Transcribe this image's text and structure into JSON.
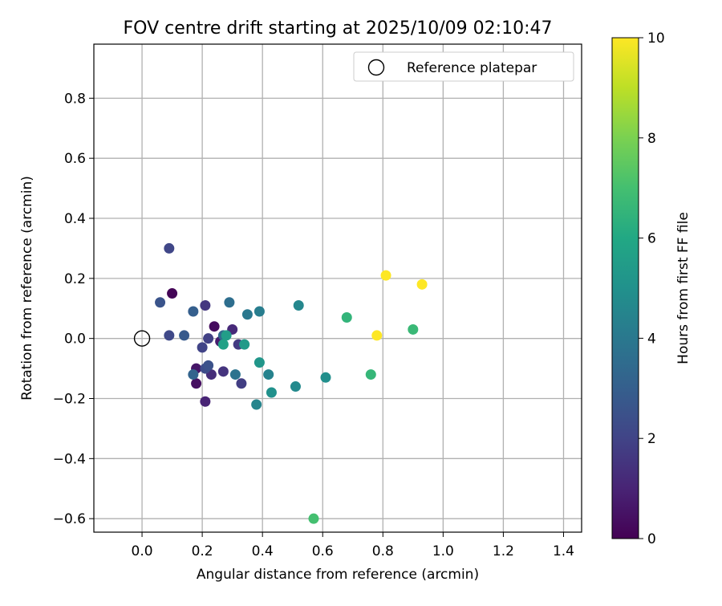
{
  "chart_data": {
    "type": "scatter",
    "title": "FOV centre drift starting at 2025/10/09 02:10:47",
    "xlabel": "Angular distance from reference (arcmin)",
    "ylabel": "Rotation from reference (arcmin)",
    "xlim": [
      -0.16,
      1.46
    ],
    "ylim": [
      -0.645,
      0.98
    ],
    "xticks": [
      "0.0",
      "0.2",
      "0.4",
      "0.6",
      "0.8",
      "1.0",
      "1.2",
      "1.4"
    ],
    "xtick_values": [
      0.0,
      0.2,
      0.4,
      0.6,
      0.8,
      1.0,
      1.2,
      1.4
    ],
    "yticks": [
      "0.8",
      "0.6",
      "0.4",
      "0.2",
      "0.0",
      "−0.2",
      "−0.4",
      "−0.6"
    ],
    "ytick_values": [
      0.8,
      0.6,
      0.4,
      0.2,
      0.0,
      -0.2,
      -0.4,
      -0.6
    ],
    "grid": true,
    "legend": {
      "position": "top-right",
      "entries": [
        "Reference platepar"
      ]
    },
    "reference_point": {
      "x": 0.0,
      "y": 0.0
    },
    "colorbar": {
      "label": "Hours from first FF file",
      "range": [
        0,
        10
      ],
      "ticks": [
        "0",
        "2",
        "4",
        "6",
        "8",
        "10"
      ],
      "tick_values": [
        0,
        2,
        4,
        6,
        8,
        10
      ],
      "colormap": "viridis"
    },
    "points": [
      {
        "x": 0.1,
        "y": 0.15,
        "h": 0.1
      },
      {
        "x": 0.24,
        "y": 0.04,
        "h": 0.3
      },
      {
        "x": 0.18,
        "y": -0.15,
        "h": 0.4
      },
      {
        "x": 0.18,
        "y": -0.1,
        "h": 0.6
      },
      {
        "x": 0.26,
        "y": -0.01,
        "h": 0.8
      },
      {
        "x": 0.21,
        "y": -0.21,
        "h": 1.0
      },
      {
        "x": 0.3,
        "y": 0.03,
        "h": 1.2
      },
      {
        "x": 0.23,
        "y": -0.12,
        "h": 1.3
      },
      {
        "x": 0.27,
        "y": -0.11,
        "h": 1.5
      },
      {
        "x": 0.21,
        "y": 0.11,
        "h": 1.6
      },
      {
        "x": 0.32,
        "y": -0.02,
        "h": 1.7
      },
      {
        "x": 0.33,
        "y": -0.15,
        "h": 1.8
      },
      {
        "x": 0.22,
        "y": 0.0,
        "h": 1.9
      },
      {
        "x": 0.2,
        "y": -0.03,
        "h": 2.0
      },
      {
        "x": 0.09,
        "y": 0.3,
        "h": 2.1
      },
      {
        "x": 0.09,
        "y": 0.01,
        "h": 2.2
      },
      {
        "x": 0.21,
        "y": -0.1,
        "h": 2.3
      },
      {
        "x": 0.22,
        "y": -0.09,
        "h": 2.5
      },
      {
        "x": 0.06,
        "y": 0.12,
        "h": 2.6
      },
      {
        "x": 0.14,
        "y": 0.01,
        "h": 2.8
      },
      {
        "x": 0.17,
        "y": 0.09,
        "h": 3.0
      },
      {
        "x": 0.17,
        "y": -0.12,
        "h": 3.2
      },
      {
        "x": 0.27,
        "y": 0.01,
        "h": 3.4
      },
      {
        "x": 0.29,
        "y": 0.12,
        "h": 3.6
      },
      {
        "x": 0.31,
        "y": -0.12,
        "h": 3.8
      },
      {
        "x": 0.35,
        "y": 0.08,
        "h": 4.0
      },
      {
        "x": 0.39,
        "y": 0.09,
        "h": 4.2
      },
      {
        "x": 0.42,
        "y": -0.12,
        "h": 4.4
      },
      {
        "x": 0.38,
        "y": -0.22,
        "h": 4.5
      },
      {
        "x": 0.52,
        "y": 0.11,
        "h": 4.6
      },
      {
        "x": 0.51,
        "y": -0.16,
        "h": 4.7
      },
      {
        "x": 0.61,
        "y": -0.13,
        "h": 4.9
      },
      {
        "x": 0.43,
        "y": -0.18,
        "h": 5.0
      },
      {
        "x": 0.39,
        "y": -0.08,
        "h": 5.2
      },
      {
        "x": 0.34,
        "y": -0.02,
        "h": 5.4
      },
      {
        "x": 0.28,
        "y": 0.01,
        "h": 5.5
      },
      {
        "x": 0.27,
        "y": -0.02,
        "h": 5.7
      },
      {
        "x": 0.68,
        "y": 0.07,
        "h": 6.5
      },
      {
        "x": 0.76,
        "y": -0.12,
        "h": 6.6
      },
      {
        "x": 0.9,
        "y": 0.03,
        "h": 6.7
      },
      {
        "x": 0.57,
        "y": -0.6,
        "h": 7.0
      },
      {
        "x": 0.78,
        "y": 0.01,
        "h": 10.0
      },
      {
        "x": 0.81,
        "y": 0.21,
        "h": 10.0
      },
      {
        "x": 0.93,
        "y": 0.18,
        "h": 10.0
      }
    ]
  }
}
